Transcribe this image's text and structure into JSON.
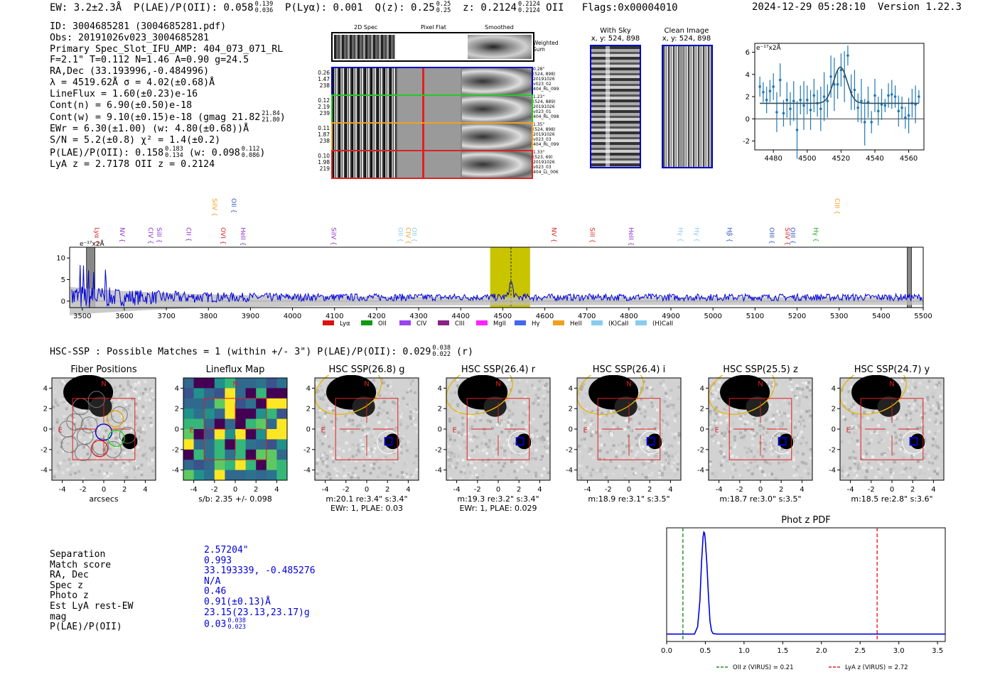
{
  "header": {
    "ew": "EW: 3.2±2.3Å",
    "plae_prefix": "P(LAE)/P(OII): 0.058",
    "plae_hi": "0.139",
    "plae_lo": "0.036",
    "plya": "P(Lyα): 0.001",
    "q_prefix": "Q(z): 0.25",
    "q_hi": "0.25",
    "q_lo": "0.25",
    "z_prefix": "z: 0.2124",
    "z_hi": "0.2124",
    "z_lo": "0.2124",
    "z_line": "OII",
    "flags": "Flags:0x00004010",
    "timestamp": "2024-12-29 05:28:10",
    "version": "Version 1.22.3"
  },
  "info": {
    "id": "ID: 3004685281 (3004685281.pdf)",
    "obs": "Obs: 20191026v023_3004685281",
    "primary": "Primary Spec_Slot_IFU_AMP: 404_073_071_RL",
    "params": "F=2.1\"  T=0.112  N=1.46  A=0.90  g=24.5",
    "radec": "RA,Dec (33.193996,-0.484996)",
    "lambda": "λ = 4519.62Å  σ = 4.02(±0.68)Å",
    "lineflux": "LineFlux = 1.60(±0.23)e-16",
    "contn": "Cont(n) = 6.90(±0.50)e-18",
    "contw_prefix": "Cont(w) = 9.10(±0.15)e-18 (gmag 21.82",
    "contw_hi": "21.84",
    "contw_lo": "21.80",
    "ewr": "EWr = 6.30(±1.00) (w: 4.80(±0.68))Å",
    "sn": "S/N = 5.2(±0.8)  χ² = 1.4(±0.2)",
    "plae_prefix": "P(LAE)/P(OII): 0.158",
    "plae_hi": "0.183",
    "plae_lo": "0.134",
    "plae_w_prefix": "(w: 0.098",
    "plae_w_hi": "0.112",
    "plae_w_lo": "0.086",
    "lyaz": "LyA z = 2.7178   OII z = 0.2124"
  },
  "spec2d": {
    "columns": [
      "2D Spec",
      "Pixel Flat",
      "Smoothed"
    ],
    "weighted_label": "Weighted Sum",
    "rows": [
      {
        "info": [
          "0.26",
          "1.47",
          "238"
        ],
        "side": [
          "0.28\"",
          "(524, 898)",
          "20191026",
          "v023_02",
          "404_RL_099"
        ],
        "color": "#0000cc"
      },
      {
        "info": [
          "0.12",
          "2.19",
          "239"
        ],
        "side": [
          "1.23\"",
          "(524, 889)",
          "20191026",
          "v023_01",
          "404_RL_098"
        ],
        "color": "#22cc22"
      },
      {
        "info": [
          "0.11",
          "1.87",
          "238"
        ],
        "side": [
          "1.35\"",
          "(524, 898)",
          "20191026",
          "v023_03",
          "404_RL_099"
        ],
        "color": "#f0a020"
      },
      {
        "info": [
          "0.10",
          "1.98",
          "219"
        ],
        "side": [
          "1.33\"",
          "(523, 69)",
          "20191026",
          "v023_03",
          "404_LL_006"
        ],
        "color": "#dd2222"
      }
    ]
  },
  "sky": {
    "with_sky_title": "With Sky",
    "with_sky_xy": "x, y: 524, 898",
    "clean_title": "Clean Image",
    "clean_xy": "x, y: 524, 898"
  },
  "fit_chart": {
    "type": "scatter",
    "ylabel_unit": "e⁻¹⁷x2Å",
    "xlim": [
      4469,
      4569
    ],
    "ylim": [
      -2.8,
      6.8
    ],
    "xticks": [
      4480,
      4500,
      4520,
      4540,
      4560
    ],
    "yticks": [
      -2,
      0,
      2,
      4,
      6
    ],
    "x": [
      4472,
      4474,
      4476,
      4478,
      4480,
      4482,
      4484,
      4486,
      4488,
      4490,
      4492,
      4494,
      4496,
      4498,
      4500,
      4502,
      4504,
      4506,
      4508,
      4510,
      4512,
      4514,
      4516,
      4518,
      4520,
      4522,
      4524,
      4526,
      4528,
      4530,
      4532,
      4534,
      4536,
      4538,
      4540,
      4542,
      4544,
      4546,
      4548,
      4550,
      4552,
      4554,
      4556,
      4558,
      4560,
      4562,
      4564,
      4566
    ],
    "y": [
      2.9,
      2.4,
      1.7,
      2.5,
      2.9,
      0.6,
      3.5,
      0.5,
      1.7,
      0.9,
      1.6,
      -1.0,
      1.7,
      1.2,
      1.7,
      0.8,
      2.1,
      1.4,
      0.9,
      2.0,
      1.6,
      3.8,
      3.1,
      3.1,
      4.4,
      3.8,
      5.7,
      2.4,
      2.6,
      1.0,
      1.6,
      -0.3,
      1.5,
      -0.3,
      2.1,
      0.7,
      1.3,
      1.2,
      2.1,
      2.2,
      2.0,
      0.7,
      1.0,
      0.1,
      0.3,
      1.4,
      1.3,
      2.0
    ],
    "err": [
      0.9,
      0.9,
      1.2,
      1.0,
      1.2,
      1.8,
      1.5,
      1.2,
      1.6,
      1.5,
      1.8,
      2.6,
      1.3,
      2.2,
      1.3,
      1.8,
      1.5,
      1.2,
      2.0,
      2.2,
      1.5,
      1.9,
      2.4,
      1.3,
      1.5,
      2.3,
      0.9,
      1.6,
      1.8,
      1.3,
      2.0,
      2.1,
      1.4,
      1.0,
      1.5,
      1.3,
      1.4,
      0.6,
      1.1,
      1.3,
      1.0,
      1.4,
      1.0,
      1.0,
      1.6,
      1.3,
      1.7,
      0.6
    ],
    "model": {
      "baseline": 1.4,
      "amplitude": 3.25,
      "center": 4519.6,
      "sigma": 4.02
    }
  },
  "spectrum": {
    "type": "line",
    "ylabel_unit": "e⁻¹⁷x2Å",
    "xlim": [
      3470,
      5500
    ],
    "ylim": [
      -1.5,
      12.5
    ],
    "xticks": [
      3500,
      3600,
      3700,
      3800,
      3900,
      4000,
      4100,
      4200,
      4300,
      4400,
      4500,
      4600,
      4700,
      4800,
      4900,
      5000,
      5100,
      5200,
      5300,
      5400,
      5500
    ],
    "yticks": [
      0,
      5,
      10
    ],
    "highlight": [
      4470,
      4565
    ],
    "line_center": 4519.62,
    "lines_top": [
      {
        "name": "SiIV",
        "x": 3810,
        "color": "#f0a020"
      },
      {
        "name": "OII",
        "x": 3855,
        "color": "#3355cc"
      },
      {
        "name": "CIII",
        "x": 5290,
        "color": "#f0a020"
      }
    ],
    "lines": [
      {
        "name": "Lyα",
        "x": 3530,
        "color": "#dd2222"
      },
      {
        "name": "NV",
        "x": 3590,
        "color": "#8833cc"
      },
      {
        "name": "CIV",
        "x": 3658,
        "color": "#8833cc"
      },
      {
        "name": "SiII",
        "x": 3678,
        "color": "#8833cc"
      },
      {
        "name": "CII",
        "x": 3748,
        "color": "#8833cc"
      },
      {
        "name": "OVI",
        "x": 3830,
        "color": "#dd2222"
      },
      {
        "name": "HeII",
        "x": 3877,
        "color": "#8833cc"
      },
      {
        "name": "SiIV",
        "x": 4093,
        "color": "#8833cc"
      },
      {
        "name": "OII",
        "x": 4252,
        "color": "#88ccee"
      },
      {
        "name": "CIV",
        "x": 4270,
        "color": "#f0a020"
      },
      {
        "name": "OII",
        "x": 4285,
        "color": "#88ccee"
      },
      {
        "name": "NV",
        "x": 4617,
        "color": "#dd2222"
      },
      {
        "name": "SiII",
        "x": 4708,
        "color": "#dd2222"
      },
      {
        "name": "HeII",
        "x": 4800,
        "color": "#8833cc"
      },
      {
        "name": "Hγ",
        "x": 4918,
        "color": "#88ccee"
      },
      {
        "name": "Hγ",
        "x": 4957,
        "color": "#88ccee"
      },
      {
        "name": "Hβ",
        "x": 5034,
        "color": "#3355cc"
      },
      {
        "name": "OIII",
        "x": 5135,
        "color": "#3355cc"
      },
      {
        "name": "SiIV",
        "x": 5172,
        "color": "#dd2222"
      },
      {
        "name": "OIII",
        "x": 5185,
        "color": "#3355cc"
      },
      {
        "name": "Hγ",
        "x": 5240,
        "color": "#22aa22"
      }
    ],
    "legend": [
      {
        "label": "Lyα",
        "color": "#dd1111"
      },
      {
        "label": "OII",
        "color": "#119911"
      },
      {
        "label": "CIV",
        "color": "#9944ee"
      },
      {
        "label": "CIII",
        "color": "#882288"
      },
      {
        "label": "MgII",
        "color": "#ff22ff"
      },
      {
        "label": "Hγ",
        "color": "#4466ee"
      },
      {
        "label": "HeII",
        "color": "#f0a020"
      },
      {
        "label": "(K)CaII",
        "color": "#88ccee"
      },
      {
        "label": "(H)CaII",
        "color": "#88ccee"
      }
    ]
  },
  "hsc": {
    "title_prefix": "HSC-SSP : Possible Matches = 1 (within +/- 3\")  P(LAE)/P(OII): 0.029",
    "title_hi": "0.038",
    "title_lo": "0.022",
    "title_band": "(r)",
    "ticks": [
      "4",
      "2",
      "0",
      "-2",
      "-4"
    ],
    "xticks": [
      "-4",
      "-2",
      "0",
      "2",
      "4"
    ],
    "compass_n": "N",
    "compass_e": "E",
    "panels": [
      {
        "title": "Fiber Positions",
        "cap1": "arcsecs",
        "cap2": ""
      },
      {
        "title": "Lineflux Map",
        "cap1": "s/b: 2.35 +/- 0.098",
        "cap2": ""
      },
      {
        "title": "HSC SSP(26.8) g",
        "cap1": "m:20.1  re:3.4\"   s:3.4\"",
        "cap2": "EWr: 1, PLAE: 0.03"
      },
      {
        "title": "HSC SSP(26.4) r",
        "cap1": "m:19.3  re:3.2\"   s:3.4\"",
        "cap2": "EWr: 1, PLAE: 0.029"
      },
      {
        "title": "HSC SSP(26.4) i",
        "cap1": "m:18.9  re:3.1\"   s:3.5\"",
        "cap2": ""
      },
      {
        "title": "HSC SSP(25.5) z",
        "cap1": "m:18.7  re:3.0\"   s:3.5\"",
        "cap2": ""
      },
      {
        "title": "HSC SSP(24.7) y",
        "cap1": "m:18.5  re:2.8\"   s:3.6\"",
        "cap2": ""
      }
    ]
  },
  "match": {
    "labels": [
      "Separation",
      "Match score",
      "RA, Dec",
      "Spec z",
      "Photo z",
      "Est LyA rest-EW",
      "mag",
      "P(LAE)/P(OII)"
    ],
    "values": [
      "2.57204\"",
      "0.993",
      "33.193339, -0.485276",
      "N/A",
      "0.46",
      "0.91(±0.13)Å",
      "23.15(23.13,23.17)g"
    ],
    "plae_value": "0.03",
    "plae_hi": "0.038",
    "plae_lo": "0.023"
  },
  "chart_data": {
    "type": "line",
    "title": "Phot z PDF",
    "xlim": [
      0.0,
      3.6
    ],
    "xticks": [
      "0.0",
      "0.5",
      "1.0",
      "1.5",
      "2.0",
      "2.5",
      "3.0",
      "3.5"
    ],
    "x": [
      0.0,
      0.36,
      0.4,
      0.43,
      0.45,
      0.47,
      0.48,
      0.49,
      0.5,
      0.52,
      0.54,
      0.56,
      0.58,
      0.6,
      0.65,
      3.6
    ],
    "y": [
      0.03,
      0.03,
      0.1,
      0.35,
      0.7,
      0.95,
      1.0,
      0.99,
      0.92,
      0.7,
      0.4,
      0.15,
      0.06,
      0.035,
      0.03,
      0.03
    ],
    "vlines": [
      {
        "label": "OII z (VIRUS) = 0.21",
        "x": 0.21,
        "color": "#228822"
      },
      {
        "label": "LyA z (VIRUS) = 2.72",
        "x": 2.72,
        "color": "#dd2222"
      }
    ]
  }
}
